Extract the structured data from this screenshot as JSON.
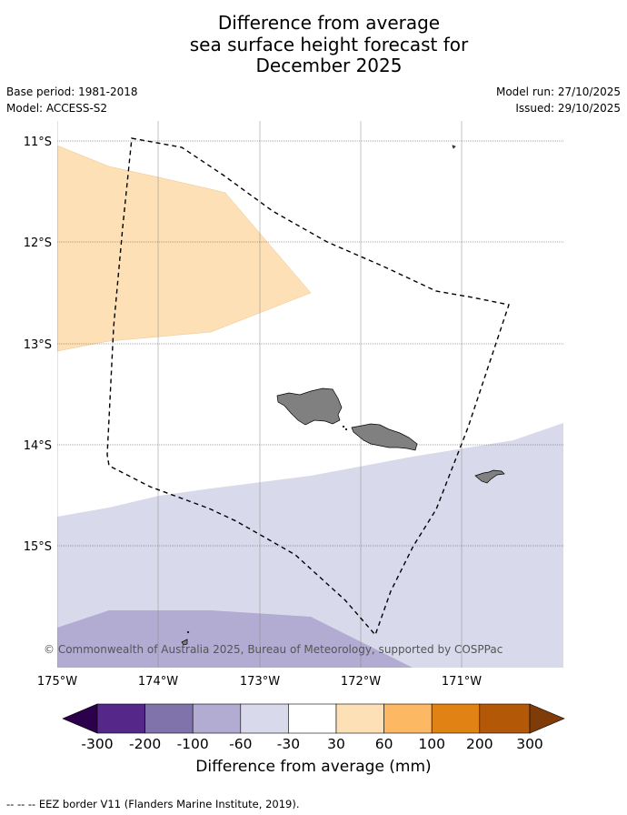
{
  "title": {
    "line1": "Difference from average",
    "line2": "sea surface height forecast for",
    "line3": "December 2025"
  },
  "meta": {
    "base_period": "Base period: 1981-2018",
    "model": "Model: ACCESS-S2",
    "model_run": "Model run: 27/10/2025",
    "issued": "Issued: 29/10/2025"
  },
  "map": {
    "lat_labels": [
      "11°S",
      "12°S",
      "13°S",
      "14°S",
      "15°S"
    ],
    "lon_labels": [
      "175°W",
      "174°W",
      "173°W",
      "172°W",
      "171°W"
    ],
    "copyright": "© Commonwealth of Australia 2025, Bureau of Meteorology, supported by COSPPac",
    "land_color": "#808080",
    "eez_line": "dashed black"
  },
  "colorbar": {
    "ticks": [
      "-300",
      "-200",
      "-100",
      "-60",
      "-30",
      "30",
      "60",
      "100",
      "200",
      "300"
    ],
    "colors": [
      "#2d004b",
      "#542788",
      "#8073ac",
      "#b2abd2",
      "#d8daeb",
      "#ffffff",
      "#fee0b6",
      "#fdb863",
      "#e08214",
      "#b35806",
      "#7f3b08"
    ],
    "label": "Difference from average (mm)"
  },
  "footnote": "--  --  -- EEZ border V11 (Flanders Marine Institute, 2019)."
}
